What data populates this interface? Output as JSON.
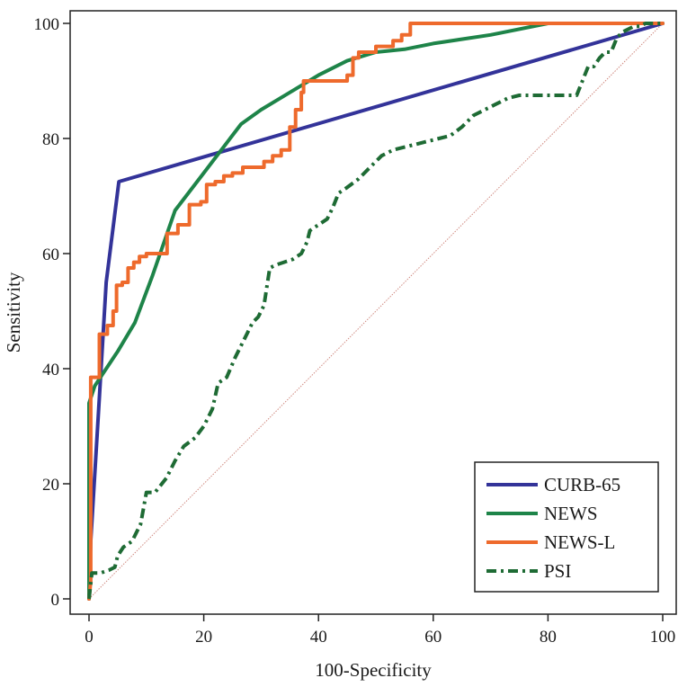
{
  "chart_data": {
    "type": "line",
    "title": "",
    "xlabel": "100-Specificity",
    "ylabel": "Sensitivity",
    "xlim": [
      0,
      100
    ],
    "ylim": [
      0,
      100
    ],
    "x_ticks": [
      "0",
      "20",
      "40",
      "60",
      "80",
      "100"
    ],
    "y_ticks": [
      "0",
      "20",
      "40",
      "60",
      "80",
      "100"
    ],
    "grid": false,
    "legend_position": "bottom-right",
    "reference_line": {
      "x": [
        0,
        100
      ],
      "y": [
        0,
        100
      ],
      "color": "#d08a80"
    },
    "series": [
      {
        "name": "CURB-65",
        "color": "#333399",
        "style": "solid",
        "x": [
          0,
          0.3,
          1.5,
          3,
          5.2,
          100
        ],
        "y": [
          0,
          10,
          30,
          55,
          72.5,
          100
        ]
      },
      {
        "name": "NEWS",
        "color": "#1e8449",
        "style": "solid",
        "x": [
          0,
          0,
          1,
          3,
          5,
          8,
          11,
          15,
          20,
          26.5,
          30,
          35,
          40,
          45,
          50,
          55,
          60,
          70,
          80,
          90,
          100
        ],
        "y": [
          0,
          34,
          37,
          40,
          43,
          48,
          56,
          67.5,
          74,
          82.5,
          85,
          88,
          91,
          93.5,
          95,
          95.5,
          96.5,
          98,
          100,
          100,
          100
        ],
        "note": ""
      },
      {
        "name": "NEWS-L",
        "color": "#ee6a2c",
        "style": "solid",
        "x": [
          0,
          0.3,
          0.3,
          1.8,
          1.8,
          3.2,
          3.2,
          4.2,
          4.2,
          4.8,
          4.8,
          5.8,
          5.8,
          6.8,
          6.8,
          7.8,
          7.8,
          8.8,
          8.8,
          10,
          10,
          11.2,
          11.2,
          13.6,
          13.6,
          15.5,
          15.5,
          17.5,
          17.5,
          19.5,
          19.5,
          20.5,
          20.5,
          22,
          22,
          23.5,
          23.5,
          25,
          25,
          26.8,
          26.8,
          29,
          29,
          30.5,
          30.5,
          32,
          32,
          33.5,
          33.5,
          35,
          35,
          36,
          36,
          37,
          37,
          37.4,
          37.4,
          45,
          45,
          46,
          46,
          47,
          47,
          50,
          50,
          53,
          53,
          54.5,
          54.5,
          56,
          56,
          57,
          57,
          100
        ],
        "y": [
          0,
          3,
          38.5,
          38.5,
          46,
          46,
          47.5,
          47.5,
          50,
          50,
          54.5,
          54.5,
          55,
          55,
          57.5,
          57.5,
          58.5,
          58.5,
          59.5,
          59.5,
          60,
          60,
          60,
          60,
          63.5,
          63.5,
          65,
          65,
          68.5,
          68.5,
          69,
          69,
          72,
          72,
          72.5,
          72.5,
          73.5,
          73.5,
          74,
          74,
          75,
          75,
          75,
          75,
          76,
          76,
          77,
          77,
          78,
          78,
          82,
          82,
          85,
          85,
          88,
          88,
          90,
          90,
          91,
          91,
          94,
          94,
          95,
          95,
          96,
          96,
          97,
          97,
          98,
          98,
          100,
          100,
          100,
          100
        ]
      },
      {
        "name": "PSI",
        "color": "#1e6b34",
        "style": "dash-dot",
        "x": [
          0,
          0.5,
          2,
          3.5,
          4.5,
          5,
          6,
          7.5,
          9,
          10,
          11.5,
          13.5,
          15,
          16.5,
          18.5,
          20,
          21.5,
          22.5,
          24,
          25.5,
          27,
          28.5,
          29.5,
          30.5,
          31.5,
          32.5,
          34,
          35.5,
          37,
          38,
          38.5,
          40,
          41.5,
          42.5,
          43.5,
          45,
          47,
          49,
          51,
          53,
          55,
          57,
          59,
          61,
          63,
          65,
          67,
          69,
          71,
          73,
          75,
          77,
          79,
          81,
          83,
          85,
          86,
          87,
          88,
          89,
          90,
          91,
          92,
          93,
          94,
          95,
          96,
          97,
          98,
          99,
          100
        ],
        "y": [
          0,
          4.5,
          4.5,
          5,
          5.5,
          7.5,
          9,
          10,
          13,
          18.5,
          18.5,
          21,
          24,
          26.5,
          28,
          30,
          33,
          37.5,
          38.5,
          42,
          45,
          48,
          49,
          51,
          57.5,
          58,
          58.5,
          59,
          60,
          62,
          64,
          65,
          66,
          68,
          70.5,
          71.5,
          73,
          75,
          77,
          78,
          78.5,
          79,
          79.5,
          80,
          80.5,
          82,
          84,
          85,
          86,
          87,
          87.5,
          87.5,
          87.5,
          87.5,
          87.5,
          87.5,
          90,
          92.5,
          92.5,
          94,
          95,
          95,
          97.5,
          98.5,
          99,
          99.5,
          99.5,
          100,
          100,
          100,
          100
        ]
      }
    ]
  }
}
